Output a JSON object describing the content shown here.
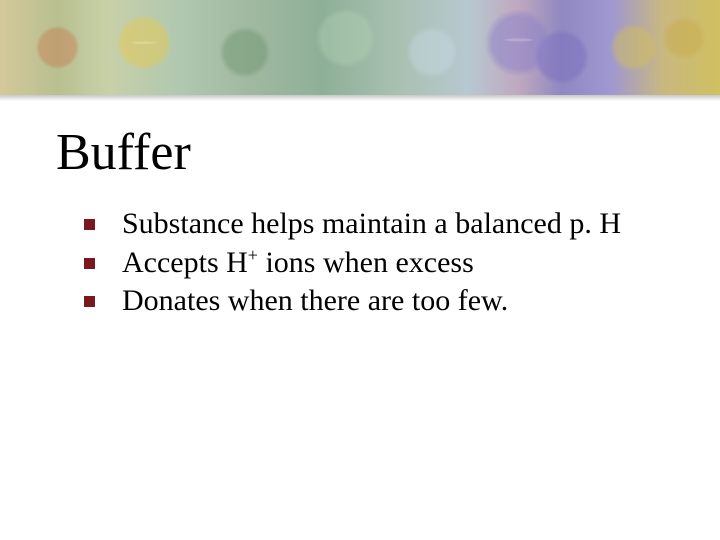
{
  "slide": {
    "title": "Buffer",
    "bullets": [
      {
        "text": "Substance helps maintain a balanced p. H"
      },
      {
        "text_pre": "Accepts H",
        "sup": "+",
        "text_post": " ions when excess"
      },
      {
        "text": "Donates when there are too few."
      }
    ],
    "style": {
      "title_fontsize": 52,
      "body_fontsize": 30,
      "title_color": "#000000",
      "body_color": "#000000",
      "bullet_color": "#7a1820",
      "bullet_size": 11,
      "banner_height": 95,
      "background": "#ffffff",
      "font_family": "Comic Sans MS"
    }
  }
}
